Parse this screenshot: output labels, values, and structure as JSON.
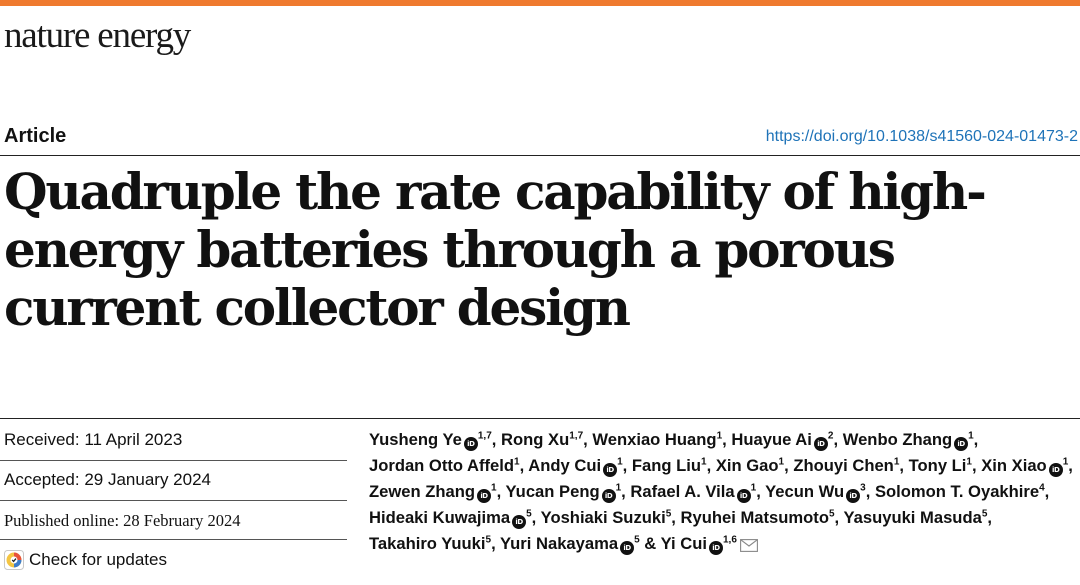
{
  "journal": {
    "name": "nature energy"
  },
  "article": {
    "type": "Article",
    "doi": "https://doi.org/10.1038/s41560-024-01473-2",
    "title": "Quadruple the rate capability of high-energy batteries through a porous current collector design"
  },
  "dates": {
    "received": "Received: 11 April 2023",
    "accepted": "Accepted: 29 January 2024",
    "published": "Published online: 28 February 2024"
  },
  "check_updates": {
    "label": "Check for updates",
    "icon": "check-for-updates-icon"
  },
  "orcid_label": "iD",
  "conjunction": "&",
  "authors": [
    {
      "name": "Yusheng Ye",
      "affil": "1,7",
      "orcid": true
    },
    {
      "name": "Rong Xu",
      "affil": "1,7",
      "orcid": false
    },
    {
      "name": "Wenxiao Huang",
      "affil": "1",
      "orcid": false
    },
    {
      "name": "Huayue Ai",
      "affil": "2",
      "orcid": true
    },
    {
      "name": "Wenbo Zhang",
      "affil": "1",
      "orcid": true
    },
    {
      "name": "Jordan Otto Affeld",
      "affil": "1",
      "orcid": false
    },
    {
      "name": "Andy Cui",
      "affil": "1",
      "orcid": true
    },
    {
      "name": "Fang Liu",
      "affil": "1",
      "orcid": false
    },
    {
      "name": "Xin Gao",
      "affil": "1",
      "orcid": false
    },
    {
      "name": "Zhouyi Chen",
      "affil": "1",
      "orcid": false
    },
    {
      "name": "Tony Li",
      "affil": "1",
      "orcid": false
    },
    {
      "name": "Xin Xiao",
      "affil": "1",
      "orcid": true
    },
    {
      "name": "Zewen Zhang",
      "affil": "1",
      "orcid": true
    },
    {
      "name": "Yucan Peng",
      "affil": "1",
      "orcid": true
    },
    {
      "name": "Rafael A. Vila",
      "affil": "1",
      "orcid": true
    },
    {
      "name": "Yecun Wu",
      "affil": "3",
      "orcid": true
    },
    {
      "name": "Solomon T. Oyakhire",
      "affil": "4",
      "orcid": false
    },
    {
      "name": "Hideaki Kuwajima",
      "affil": "5",
      "orcid": true
    },
    {
      "name": "Yoshiaki Suzuki",
      "affil": "5",
      "orcid": false
    },
    {
      "name": "Ryuhei Matsumoto",
      "affil": "5",
      "orcid": false
    },
    {
      "name": "Yasuyuki Masuda",
      "affil": "5",
      "orcid": false
    },
    {
      "name": "Takahiro Yuuki",
      "affil": "5",
      "orcid": false
    },
    {
      "name": "Yuri Nakayama",
      "affil": "5",
      "orcid": true
    },
    {
      "name": "Yi Cui",
      "affil": "1,6",
      "orcid": true,
      "corresponding": true
    }
  ],
  "colors": {
    "accent": "#ef7a2f",
    "link": "#1e73b8",
    "text": "#111111"
  }
}
